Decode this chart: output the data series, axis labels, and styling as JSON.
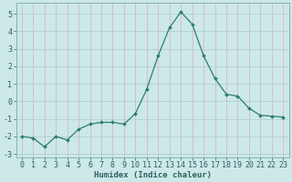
{
  "x": [
    0,
    1,
    2,
    3,
    4,
    5,
    6,
    7,
    8,
    9,
    10,
    11,
    12,
    13,
    14,
    15,
    16,
    17,
    18,
    19,
    20,
    21,
    22,
    23
  ],
  "y": [
    -2.0,
    -2.1,
    -2.6,
    -2.0,
    -2.2,
    -1.6,
    -1.3,
    -1.2,
    -1.2,
    -1.3,
    -0.7,
    0.7,
    2.6,
    4.2,
    5.1,
    4.4,
    2.6,
    1.3,
    0.4,
    0.3,
    -0.4,
    -0.8,
    -0.85,
    -0.9
  ],
  "line_color": "#2e7d6e",
  "marker": "D",
  "marker_size": 2.0,
  "bg_color": "#cce8e8",
  "grid_color_major": "#aacccc",
  "grid_color_minor": "#c0dada",
  "xlabel": "Humidex (Indice chaleur)",
  "ylim": [
    -3.2,
    5.6
  ],
  "xlim": [
    -0.5,
    23.5
  ],
  "yticks": [
    -3,
    -2,
    -1,
    0,
    1,
    2,
    3,
    4,
    5
  ],
  "xticks": [
    0,
    1,
    2,
    3,
    4,
    5,
    6,
    7,
    8,
    9,
    10,
    11,
    12,
    13,
    14,
    15,
    16,
    17,
    18,
    19,
    20,
    21,
    22,
    23
  ],
  "xlabel_fontsize": 6.5,
  "tick_fontsize": 6.0,
  "line_width": 0.9
}
